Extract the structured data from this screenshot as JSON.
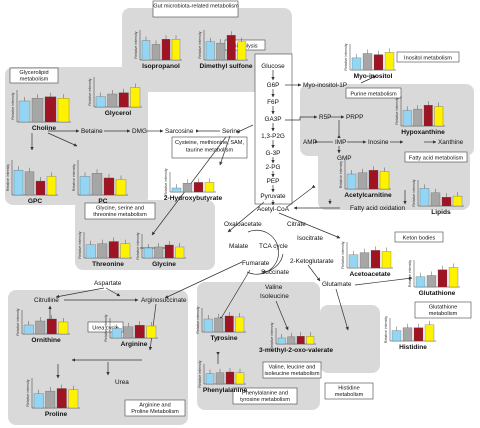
{
  "colors": {
    "c1": "#93d5f2",
    "c2": "#a6a6a6",
    "c3": "#a01323",
    "c4": "#fff200"
  },
  "panel_titles": {
    "gut": "Gut microbiota-related metabolism",
    "glycerolipid": "Glycerolipid metabolism",
    "glycolysis": "Glycolysis",
    "inositol": "Inositol metabolism",
    "purine": "Purine metabolism",
    "cysteine": "Cysteine, methionine, SAM, taurine metabolism",
    "fatty": "Fatty acid metabolism",
    "glycine_ser": "Glycine, serine and threonine metabolism",
    "keton": "Keton bodies",
    "urea": "Urea cycle",
    "glutathione": "Glutathione metabolism",
    "arginine": "Arginine and Proline Metabolism",
    "histidine": "Histidine metabolism",
    "valine": "Valine, leucine and isoleucine metabolism",
    "phe": "Phenylalanine and tyrosine metabolism"
  },
  "nodes": {
    "glucose": "Glucose",
    "g6p": "G6P",
    "f6p": "F6P",
    "ga3p": "GA3P",
    "bpg": "1,3-P2G",
    "g3p": "G-3P",
    "g2p": "2-PG",
    "pep": "PEP",
    "pyruvate": "Pyruvate",
    "myo1p": "Myo-inositol-1P",
    "r5p": "R5P",
    "prpp": "PRPP",
    "amp": "AMP",
    "imp": "IMP",
    "gmp": "GMP",
    "inosine": "Inosine",
    "xanthine": "Xanthine",
    "betaine": "Betaine",
    "dmg": "DMG",
    "sarcosine": "Sarcosine",
    "serine": "Serine",
    "acetylcoa": "Acetyl-CoA",
    "fa_ox": "Fatty acid oxidation",
    "oxaloacetate": "Oxaloacetate",
    "citrate": "Citrate",
    "isocitrate": "Isocitrate",
    "malate": "Malate",
    "tca": "TCA cycle",
    "fumarate": "Fumarate",
    "succinate": "Succinate",
    "akg": "2-Ketoglutarate",
    "glutamate": "Glutamate",
    "citrulline": "Citrulline",
    "aspartate": "Aspartate",
    "argsucc": "Arginosuccinate",
    "urea": "Urea",
    "valine": "Valine",
    "isoleucine": "Isoleucine"
  },
  "charts": {
    "isopropanol": {
      "label": "Isopropanol",
      "values": [
        0.75,
        0.6,
        0.8,
        0.8
      ]
    },
    "dimethylsulfone": {
      "label": "Dimethyl sulfone",
      "values": [
        0.7,
        0.65,
        0.95,
        0.7
      ]
    },
    "myoinositol": {
      "label": "Myo-inositol",
      "values": [
        0.55,
        0.75,
        0.7,
        0.8
      ]
    },
    "glycerol": {
      "label": "Glycerol",
      "values": [
        0.4,
        0.5,
        0.55,
        0.75
      ]
    },
    "choline": {
      "label": "Choline",
      "values": [
        0.75,
        0.85,
        0.9,
        0.85
      ]
    },
    "hypoxanthine": {
      "label": "Hypoxanthine",
      "values": [
        0.6,
        0.65,
        0.8,
        0.75
      ]
    },
    "gpc": {
      "label": "GPC",
      "values": [
        0.8,
        0.75,
        0.45,
        0.6
      ]
    },
    "pc": {
      "label": "PC",
      "values": [
        0.6,
        0.7,
        0.55,
        0.5
      ]
    },
    "hydroxybutyrate": {
      "label": "2-Hydroxybutyrate",
      "values": [
        0.25,
        0.55,
        0.6,
        0.6
      ]
    },
    "acetylcarnitine": {
      "label": "Acetylcarnitine",
      "values": [
        0.6,
        0.65,
        0.75,
        0.7
      ]
    },
    "lipids": {
      "label": "Lipids",
      "values": [
        0.8,
        0.6,
        0.4,
        0.45
      ]
    },
    "threonine": {
      "label": "Threonine",
      "values": [
        0.6,
        0.65,
        0.75,
        0.65
      ]
    },
    "glycine": {
      "label": "Glycine",
      "values": [
        0.5,
        0.55,
        0.65,
        0.55
      ]
    },
    "acetoacetate": {
      "label": "Acetoacetate",
      "values": [
        0.6,
        0.7,
        0.8,
        0.75
      ]
    },
    "glutathione": {
      "label": "Glutathione",
      "values": [
        0.45,
        0.5,
        0.75,
        0.85
      ]
    },
    "tyrosine": {
      "label": "Tyrosine",
      "values": [
        0.65,
        0.7,
        0.8,
        0.75
      ]
    },
    "histidine": {
      "label": "Histidine",
      "values": [
        0.55,
        0.7,
        0.7,
        0.85
      ]
    },
    "ornithine": {
      "label": "Ornithine",
      "values": [
        0.45,
        0.65,
        0.75,
        0.6
      ]
    },
    "arginine": {
      "label": "Arginine",
      "values": [
        0.6,
        0.7,
        0.8,
        0.75
      ]
    },
    "methyloxovalerate": {
      "label": "3-methyl-2-oxo-valerate",
      "values": [
        0.5,
        0.6,
        0.65,
        0.65
      ]
    },
    "phenylalanine": {
      "label": "Phenylalanine",
      "values": [
        0.65,
        0.7,
        0.75,
        0.7
      ]
    },
    "proline": {
      "label": "Proline",
      "values": [
        0.55,
        0.65,
        0.75,
        0.7
      ]
    }
  },
  "axis_label": "Relative intensity"
}
